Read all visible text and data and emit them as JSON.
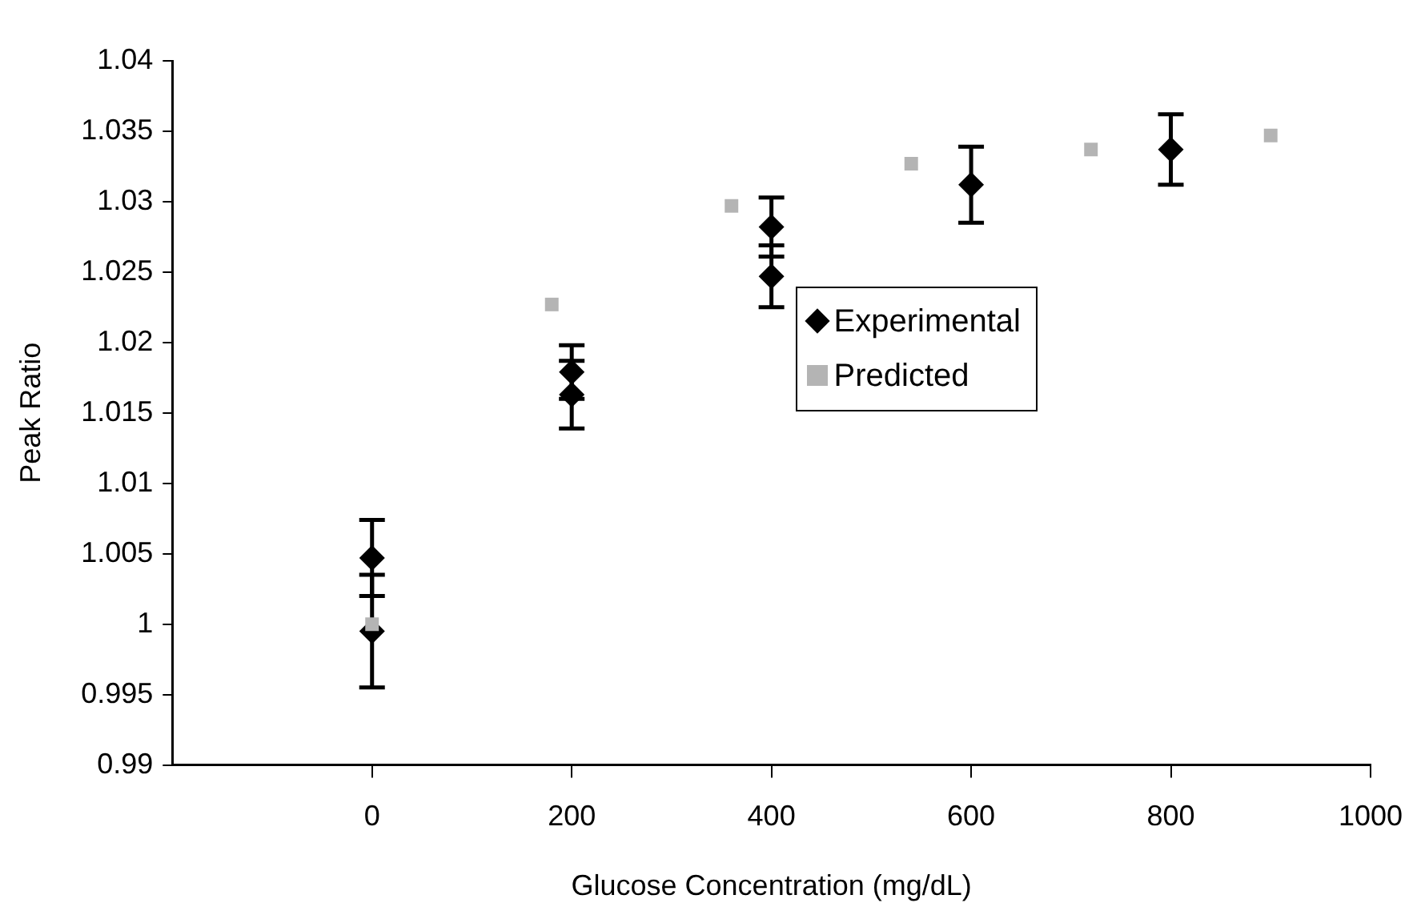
{
  "chart_data": {
    "type": "scatter",
    "xlabel": "Glucose Concentration (mg/dL)",
    "ylabel": "Peak Ratio",
    "xlim": [
      -200,
      1000
    ],
    "xticks": [
      0,
      200,
      400,
      600,
      800,
      1000
    ],
    "ylim": [
      0.99,
      1.04
    ],
    "yticks": [
      0.99,
      0.995,
      1,
      1.005,
      1.01,
      1.015,
      1.02,
      1.025,
      1.03,
      1.035,
      1.04
    ],
    "grid": false,
    "legend": "right",
    "series": [
      {
        "name": "Experimental",
        "color": "#000000",
        "marker": "diamond",
        "x": [
          0,
          0,
          200,
          200,
          400,
          400,
          600,
          800
        ],
        "values": [
          1.0047,
          0.9995,
          1.0179,
          1.0163,
          1.0282,
          1.0247,
          1.0312,
          1.0337
        ],
        "errors": [
          0.0027,
          0.004,
          0.0019,
          0.0024,
          0.0021,
          0.0022,
          0.0027,
          0.0025
        ]
      },
      {
        "name": "Predicted",
        "color": "#b4b4b4",
        "marker": "square",
        "x": [
          0,
          180,
          360,
          540,
          720,
          900
        ],
        "values": [
          1.0,
          1.0227,
          1.0297,
          1.0327,
          1.0337,
          1.0347
        ]
      }
    ]
  }
}
